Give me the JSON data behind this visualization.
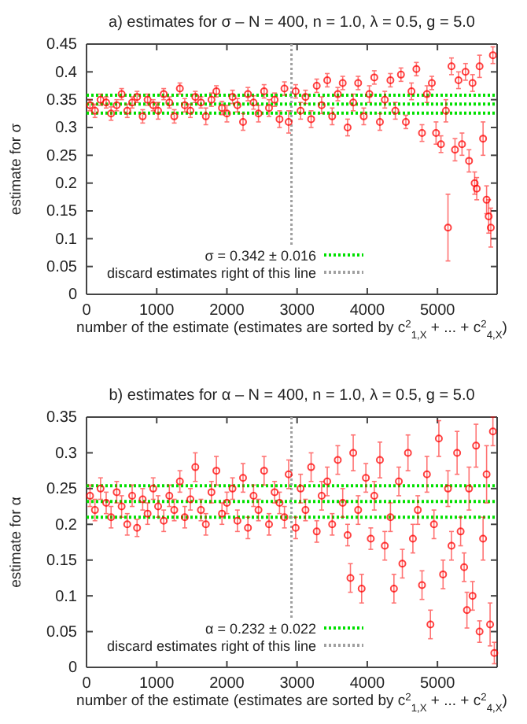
{
  "chart_data": [
    {
      "type": "scatter",
      "title": "a)  estimates for σ  –  N = 400, n = 1.0, λ = 0.5, g = 5.0",
      "xlabel": "number of the estimate (estimates are sorted by c$^{2}$$_{1,X}$ + ... + c$^{2}$$_{4,X}$)",
      "ylabel": "estimate for σ",
      "color": "#ff0000",
      "marker": "circle",
      "legend": "bottom",
      "xlim": [
        0,
        5850
      ],
      "xticks": [
        0,
        1000,
        2000,
        3000,
        4000,
        5000
      ],
      "ylim": [
        0,
        0.45
      ],
      "yticks": [
        0,
        0.05,
        0.1,
        0.15,
        0.2,
        0.25,
        0.3,
        0.35,
        0.4,
        0.45
      ],
      "x": [
        50,
        120,
        200,
        280,
        350,
        430,
        500,
        580,
        650,
        720,
        800,
        870,
        950,
        1020,
        1100,
        1180,
        1250,
        1330,
        1400,
        1480,
        1550,
        1630,
        1700,
        1780,
        1850,
        1930,
        2000,
        2080,
        2150,
        2230,
        2300,
        2380,
        2450,
        2530,
        2600,
        2680,
        2750,
        2820,
        2880,
        2980,
        3050,
        3120,
        3200,
        3280,
        3350,
        3430,
        3500,
        3580,
        3650,
        3720,
        3800,
        3870,
        3950,
        4030,
        4100,
        4180,
        4250,
        4330,
        4400,
        4480,
        4550,
        4630,
        4700,
        4780,
        4850,
        4920,
        4980,
        5050,
        5120,
        5150,
        5200,
        5250,
        5300,
        5350,
        5400,
        5450,
        5500,
        5530,
        5560,
        5600,
        5650,
        5700,
        5730,
        5760,
        5790
      ],
      "values": [
        0.34,
        0.33,
        0.35,
        0.345,
        0.325,
        0.34,
        0.36,
        0.33,
        0.345,
        0.355,
        0.32,
        0.35,
        0.34,
        0.33,
        0.36,
        0.345,
        0.32,
        0.37,
        0.34,
        0.33,
        0.355,
        0.345,
        0.32,
        0.35,
        0.365,
        0.335,
        0.325,
        0.355,
        0.34,
        0.31,
        0.36,
        0.345,
        0.325,
        0.365,
        0.335,
        0.35,
        0.315,
        0.37,
        0.31,
        0.365,
        0.33,
        0.355,
        0.315,
        0.375,
        0.34,
        0.385,
        0.32,
        0.36,
        0.38,
        0.3,
        0.345,
        0.38,
        0.32,
        0.36,
        0.39,
        0.31,
        0.35,
        0.385,
        0.33,
        0.395,
        0.31,
        0.365,
        0.405,
        0.29,
        0.36,
        0.38,
        0.29,
        0.27,
        0.33,
        0.12,
        0.41,
        0.26,
        0.385,
        0.27,
        0.4,
        0.24,
        0.38,
        0.2,
        0.19,
        0.41,
        0.28,
        0.17,
        0.14,
        0.12,
        0.43
      ],
      "errors": [
        0.01,
        0.012,
        0.01,
        0.01,
        0.012,
        0.01,
        0.01,
        0.012,
        0.01,
        0.01,
        0.012,
        0.01,
        0.01,
        0.015,
        0.01,
        0.01,
        0.012,
        0.01,
        0.012,
        0.012,
        0.01,
        0.01,
        0.015,
        0.012,
        0.01,
        0.012,
        0.015,
        0.012,
        0.012,
        0.015,
        0.012,
        0.012,
        0.015,
        0.012,
        0.015,
        0.012,
        0.015,
        0.012,
        0.02,
        0.012,
        0.015,
        0.012,
        0.015,
        0.012,
        0.015,
        0.012,
        0.015,
        0.012,
        0.012,
        0.015,
        0.015,
        0.012,
        0.015,
        0.015,
        0.012,
        0.015,
        0.015,
        0.012,
        0.015,
        0.012,
        0.012,
        0.015,
        0.012,
        0.015,
        0.015,
        0.012,
        0.02,
        0.015,
        0.02,
        0.06,
        0.015,
        0.02,
        0.015,
        0.02,
        0.015,
        0.02,
        0.015,
        0.02,
        0.02,
        0.02,
        0.03,
        0.025,
        0.03,
        0.035,
        0.015
      ],
      "ref_lines": [
        {
          "axis": "y",
          "value": 0.342,
          "label": "σ = 0.342 ± 0.016",
          "color": "#00e000",
          "line_style": "dotted"
        },
        {
          "axis": "y",
          "value": 0.326,
          "color": "#00e000",
          "line_style": "dotted"
        },
        {
          "axis": "y",
          "value": 0.358,
          "color": "#00e000",
          "line_style": "dotted"
        },
        {
          "axis": "x",
          "value": 2920,
          "label": "discard estimates right of this line",
          "color": "#a0a0a0",
          "line_style": "dotted"
        }
      ]
    },
    {
      "type": "scatter",
      "title": "b)  estimates for α  –  N = 400, n = 1.0, λ = 0.5, g = 5.0",
      "xlabel": "number of the estimate (estimates are sorted by c$^{2}$$_{1,X}$ + ... + c$^{2}$$_{4,X}$)",
      "ylabel": "estimate for α",
      "color": "#ff0000",
      "marker": "circle",
      "legend": "bottom",
      "xlim": [
        0,
        5850
      ],
      "xticks": [
        0,
        1000,
        2000,
        3000,
        4000,
        5000
      ],
      "ylim": [
        0,
        0.35
      ],
      "yticks": [
        0,
        0.05,
        0.1,
        0.15,
        0.2,
        0.25,
        0.3,
        0.35
      ],
      "x": [
        50,
        120,
        200,
        280,
        350,
        430,
        500,
        580,
        650,
        720,
        800,
        870,
        950,
        1020,
        1100,
        1180,
        1250,
        1330,
        1400,
        1480,
        1550,
        1630,
        1700,
        1780,
        1850,
        1930,
        2000,
        2080,
        2150,
        2230,
        2300,
        2380,
        2450,
        2530,
        2600,
        2680,
        2750,
        2820,
        2880,
        2980,
        3050,
        3120,
        3200,
        3280,
        3350,
        3430,
        3500,
        3580,
        3650,
        3720,
        3760,
        3800,
        3870,
        3920,
        3980,
        4050,
        4100,
        4180,
        4250,
        4330,
        4380,
        4450,
        4500,
        4580,
        4650,
        4720,
        4780,
        4850,
        4900,
        4950,
        5020,
        5080,
        5150,
        5200,
        5280,
        5330,
        5380,
        5420,
        5450,
        5500,
        5550,
        5600,
        5650,
        5700,
        5750,
        5790,
        5810
      ],
      "values": [
        0.24,
        0.22,
        0.25,
        0.23,
        0.21,
        0.245,
        0.225,
        0.2,
        0.24,
        0.195,
        0.235,
        0.215,
        0.25,
        0.225,
        0.205,
        0.24,
        0.22,
        0.26,
        0.21,
        0.235,
        0.28,
        0.22,
        0.2,
        0.245,
        0.275,
        0.215,
        0.23,
        0.25,
        0.205,
        0.265,
        0.195,
        0.24,
        0.22,
        0.275,
        0.2,
        0.245,
        0.23,
        0.21,
        0.27,
        0.195,
        0.25,
        0.22,
        0.28,
        0.19,
        0.24,
        0.26,
        0.2,
        0.29,
        0.23,
        0.185,
        0.125,
        0.3,
        0.22,
        0.11,
        0.265,
        0.18,
        0.24,
        0.29,
        0.17,
        0.21,
        0.11,
        0.26,
        0.145,
        0.3,
        0.18,
        0.22,
        0.115,
        0.27,
        0.06,
        0.2,
        0.32,
        0.13,
        0.25,
        0.17,
        0.3,
        0.19,
        0.14,
        0.08,
        0.25,
        0.1,
        0.31,
        0.05,
        0.18,
        0.27,
        0.06,
        0.33,
        0.02
      ],
      "errors": [
        0.015,
        0.015,
        0.015,
        0.015,
        0.015,
        0.015,
        0.015,
        0.015,
        0.015,
        0.012,
        0.015,
        0.015,
        0.015,
        0.015,
        0.015,
        0.015,
        0.015,
        0.015,
        0.015,
        0.015,
        0.02,
        0.015,
        0.015,
        0.015,
        0.02,
        0.015,
        0.015,
        0.015,
        0.015,
        0.02,
        0.015,
        0.015,
        0.015,
        0.02,
        0.015,
        0.015,
        0.015,
        0.015,
        0.02,
        0.015,
        0.02,
        0.015,
        0.02,
        0.015,
        0.02,
        0.02,
        0.015,
        0.02,
        0.02,
        0.015,
        0.02,
        0.025,
        0.02,
        0.02,
        0.02,
        0.015,
        0.02,
        0.025,
        0.02,
        0.02,
        0.02,
        0.02,
        0.02,
        0.025,
        0.02,
        0.02,
        0.02,
        0.025,
        0.02,
        0.02,
        0.025,
        0.02,
        0.025,
        0.02,
        0.03,
        0.02,
        0.02,
        0.025,
        0.03,
        0.02,
        0.03,
        0.015,
        0.03,
        0.04,
        0.03,
        0.02,
        0.015
      ],
      "ref_lines": [
        {
          "axis": "y",
          "value": 0.232,
          "label": "α = 0.232 ± 0.022",
          "color": "#00e000",
          "line_style": "dotted"
        },
        {
          "axis": "y",
          "value": 0.21,
          "color": "#00e000",
          "line_style": "dotted"
        },
        {
          "axis": "y",
          "value": 0.254,
          "color": "#00e000",
          "line_style": "dotted"
        },
        {
          "axis": "x",
          "value": 2920,
          "label": "discard estimates right of this line",
          "color": "#a0a0a0",
          "line_style": "dotted"
        }
      ]
    }
  ]
}
